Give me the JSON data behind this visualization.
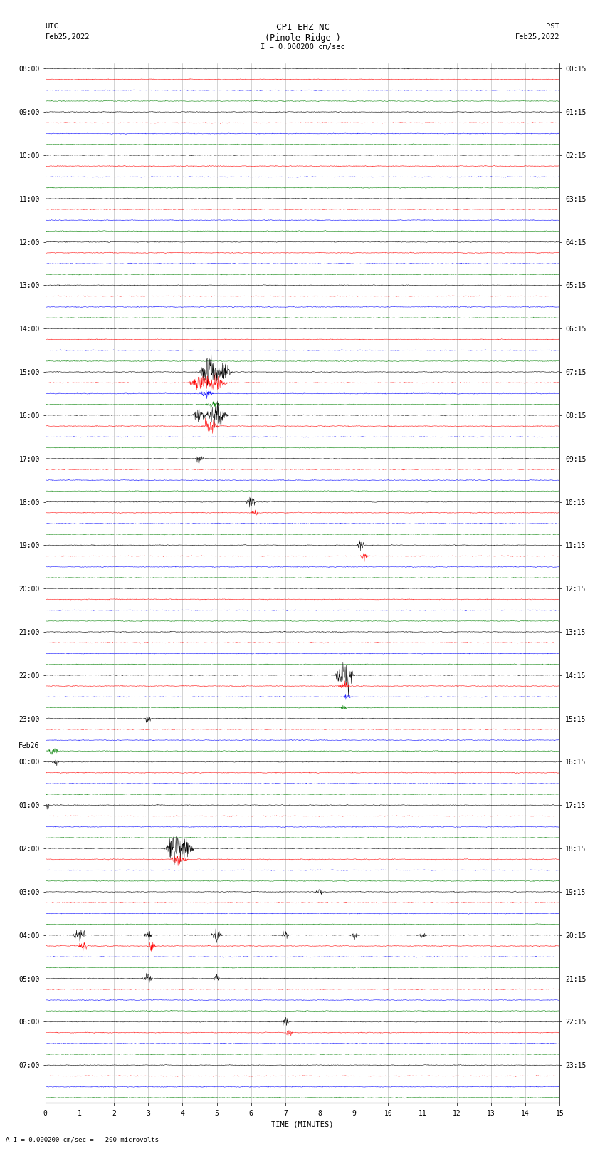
{
  "title_line1": "CPI EHZ NC",
  "title_line2": "(Pinole Ridge )",
  "scale_label": "I = 0.000200 cm/sec",
  "bottom_label": "A I = 0.000200 cm/sec =   200 microvolts",
  "xlabel": "TIME (MINUTES)",
  "utc_label": "UTC",
  "utc_date": "Feb25,2022",
  "pst_label": "PST",
  "pst_date": "Feb25,2022",
  "left_times_labeled": {
    "0": "08:00",
    "4": "09:00",
    "8": "10:00",
    "12": "11:00",
    "16": "12:00",
    "20": "13:00",
    "24": "14:00",
    "28": "15:00",
    "32": "16:00",
    "36": "17:00",
    "40": "18:00",
    "44": "19:00",
    "48": "20:00",
    "52": "21:00",
    "56": "22:00",
    "60": "23:00",
    "64": "00:00",
    "68": "01:00",
    "72": "02:00",
    "76": "03:00",
    "80": "04:00",
    "84": "05:00",
    "88": "06:00",
    "92": "07:00"
  },
  "feb26_row": 63,
  "right_times_labeled": {
    "0": "00:15",
    "4": "01:15",
    "8": "02:15",
    "12": "03:15",
    "16": "04:15",
    "20": "05:15",
    "24": "06:15",
    "28": "07:15",
    "32": "08:15",
    "36": "09:15",
    "40": "10:15",
    "44": "11:15",
    "48": "12:15",
    "52": "13:15",
    "56": "14:15",
    "60": "15:15",
    "64": "16:15",
    "68": "17:15",
    "72": "18:15",
    "76": "19:15",
    "80": "20:15",
    "84": "21:15",
    "88": "22:15",
    "92": "23:15"
  },
  "trace_colors": [
    "black",
    "red",
    "blue",
    "green"
  ],
  "num_rows": 96,
  "background_color": "white",
  "noise_amplitude": 0.08,
  "title_fontsize": 9,
  "label_fontsize": 7.5,
  "tick_fontsize": 7,
  "xmin": 0,
  "xmax": 15,
  "xticks": [
    0,
    1,
    2,
    3,
    4,
    5,
    6,
    7,
    8,
    9,
    10,
    11,
    12,
    13,
    14,
    15
  ]
}
